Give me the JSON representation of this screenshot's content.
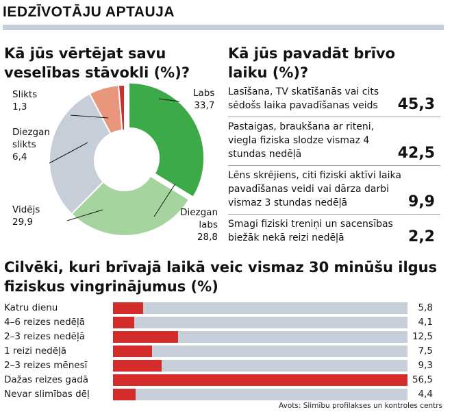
{
  "header": {
    "title": "IEDZĪVOTĀJU APTAUJA"
  },
  "source": "Avots: Slimību profilakses un kontroles centrs",
  "chart_data": [
    {
      "type": "pie",
      "title": "Kā jūs vērtējat savu veselības stāvokli (%)?",
      "slices": [
        {
          "name": "Labs",
          "value": 33.7,
          "value_text": "33,7",
          "color": "#3daa4a"
        },
        {
          "name": "Diezgan labs",
          "value": 28.8,
          "value_text": "28,8",
          "color": "#a6d49f"
        },
        {
          "name": "Vidējs",
          "value": 29.9,
          "value_text": "29,9",
          "color": "#c5ced9"
        },
        {
          "name": "Diezgan slikts",
          "value": 6.4,
          "value_text": "6,4",
          "color": "#e8967c"
        },
        {
          "name": "Slikts",
          "value": 1.3,
          "value_text": "1,3",
          "color": "#d42b2b"
        }
      ]
    },
    {
      "type": "table",
      "title": "Kā jūs pavadāt brīvo laiku (%)?",
      "rows": [
        {
          "label": "Lasīšana, TV skatīšanās vai cits sēdošs laika pavadīšanas veids",
          "value": 45.3,
          "value_text": "45,3"
        },
        {
          "label": "Pastaigas, braukšana ar riteni, viegla fiziska slodze vismaz 4 stundas nedēļā",
          "value": 42.5,
          "value_text": "42,5"
        },
        {
          "label": "Lēns skrējiens, citi fiziski aktīvi laika pavadīšanas veidi vai dārza darbi vismaz 3 stundas nedēļā",
          "value": 9.9,
          "value_text": "9,9"
        },
        {
          "label": "Smagi fiziski treniņi un sacensības biežāk nekā reizi nedēļā",
          "value": 2.2,
          "value_text": "2,2"
        }
      ]
    },
    {
      "type": "bar",
      "title": "Cilvēki, kuri brīvajā laikā veic vismaz 30 minūšu ilgus fiziskus vingrinājumus (%)",
      "categories": [
        "Katru dienu",
        "4–6 reizes nedēļā",
        "2–3 reizes nedēļā",
        "1 reizi nedēļā",
        "2–3 reizes mēnesī",
        "Dažas reizes gadā",
        "Nevar slimības dēļ"
      ],
      "values": [
        5.8,
        4.1,
        12.5,
        7.5,
        9.3,
        56.5,
        4.4
      ],
      "value_texts": [
        "5,8",
        "4,1",
        "12,5",
        "7,5",
        "9,3",
        "56,5",
        "4,4"
      ],
      "xlim": [
        0,
        56.5
      ],
      "colors": {
        "fill": "#d42b2b",
        "track": "#c5ced9"
      }
    }
  ]
}
